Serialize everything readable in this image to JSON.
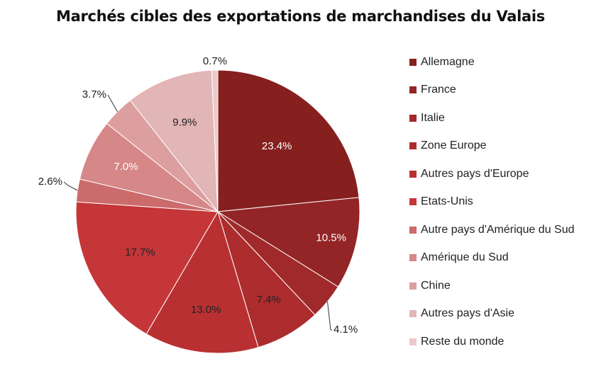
{
  "chart_data": {
    "type": "pie",
    "title": "Marchés cibles des exportations de marchandises du Valais",
    "legend_position": "right",
    "slices": [
      {
        "label": "Allemagne",
        "value": 23.4,
        "display": "23.4%",
        "color": "#85201f",
        "label_color": "#ffffff"
      },
      {
        "label": "France",
        "value": 10.5,
        "display": "10.5%",
        "color": "#932526",
        "label_color": "#ffffff"
      },
      {
        "label": "Italie",
        "value": 4.1,
        "display": "4.1%",
        "color": "#a02a2b",
        "label_color": "#222222"
      },
      {
        "label": "Zone Europe",
        "value": 7.4,
        "display": "7.4%",
        "color": "#ad2c2e",
        "label_color": "#222222"
      },
      {
        "label": "Autres pays d'Europe",
        "value": 13.0,
        "display": "13.0%",
        "color": "#b93032",
        "label_color": "#222222"
      },
      {
        "label": "Etats-Unis",
        "value": 17.7,
        "display": "17.7%",
        "color": "#c53638",
        "label_color": "#222222"
      },
      {
        "label": "Autre pays d'Amérique du Sud",
        "value": 2.6,
        "display": "2.6%",
        "color": "#cc6b6c",
        "label_color": "#222222"
      },
      {
        "label": "Amérique du Sud",
        "value": 7.0,
        "display": "7.0%",
        "color": "#d68788",
        "label_color": "#ffffff"
      },
      {
        "label": "Chine",
        "value": 3.7,
        "display": "3.7%",
        "color": "#dc9e9f",
        "label_color": "#222222"
      },
      {
        "label": "Autres pays d'Asie",
        "value": 9.9,
        "display": "9.9%",
        "color": "#e2b5b6",
        "label_color": "#222222"
      },
      {
        "label": "Reste du monde",
        "value": 0.7,
        "display": "0.7%",
        "color": "#ecc9ca",
        "label_color": "#222222"
      }
    ]
  }
}
